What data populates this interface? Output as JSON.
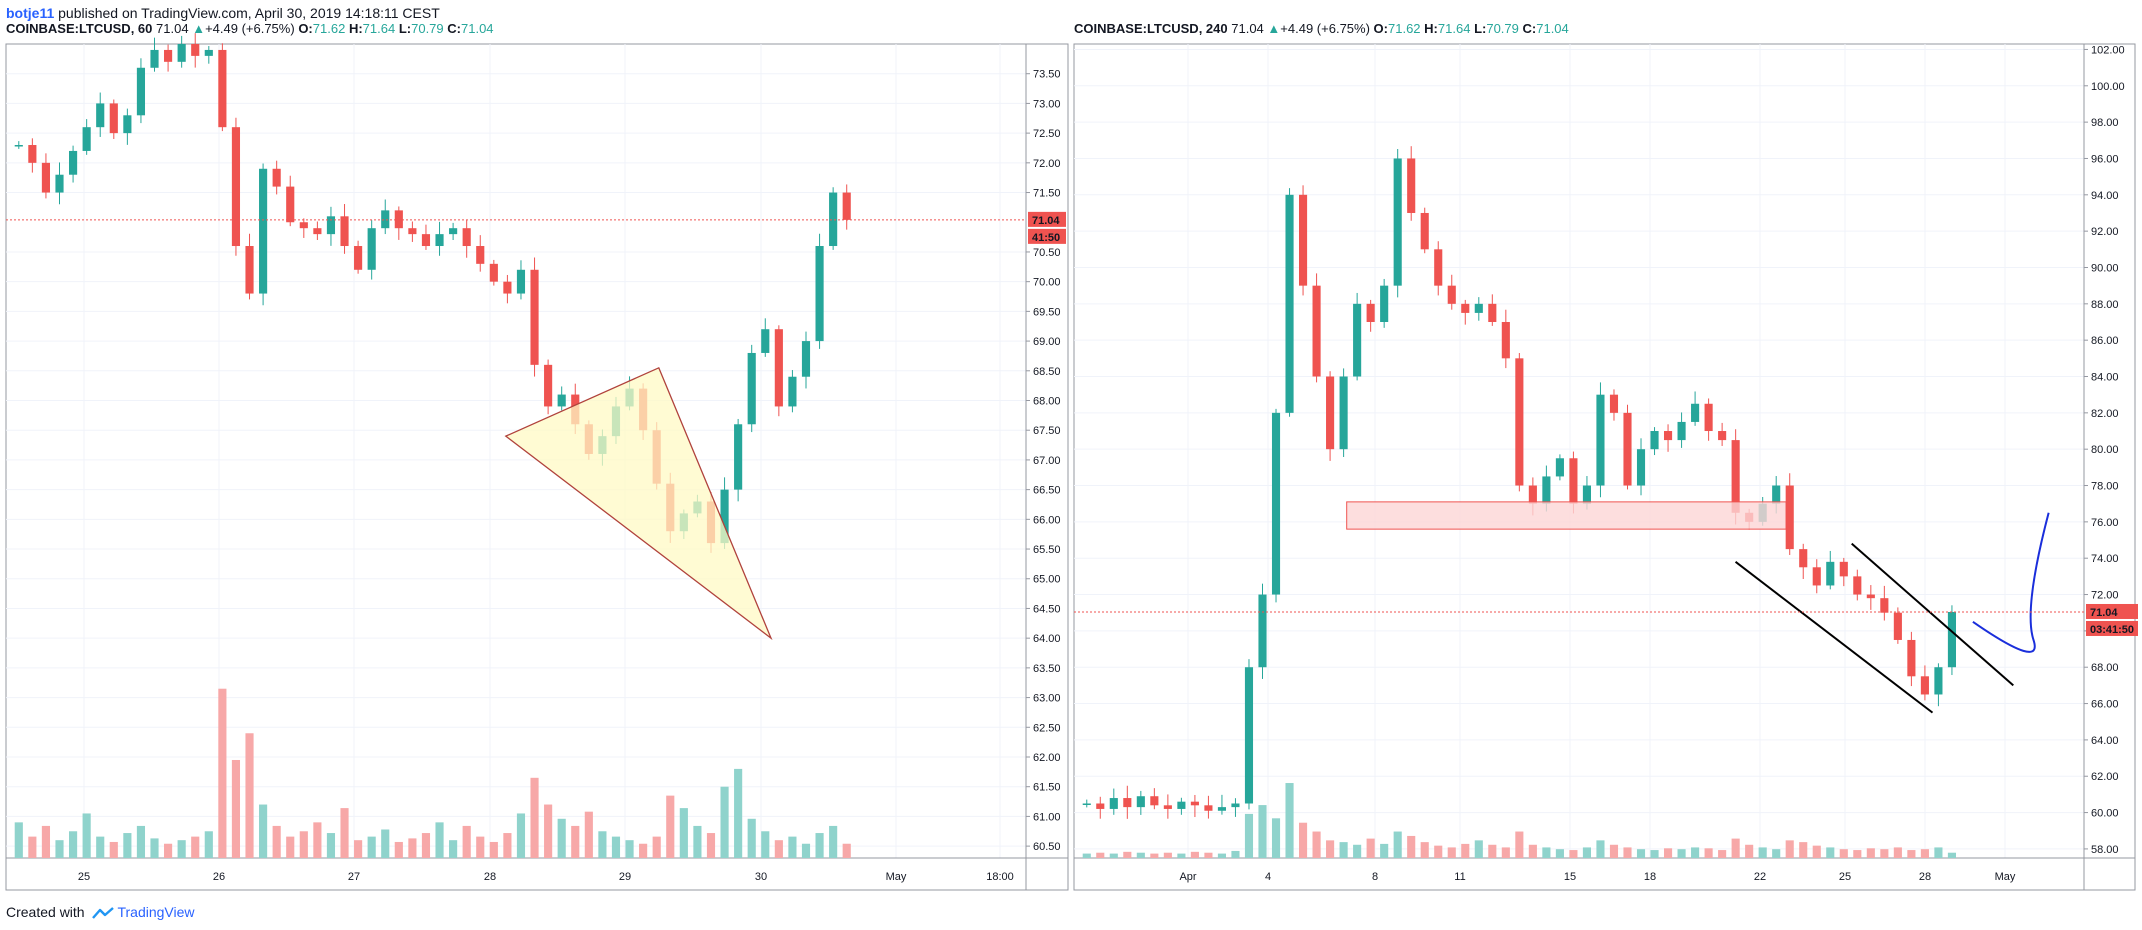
{
  "header": {
    "user": "botje11",
    "text": "published on TradingView.com, April 30, 2019 14:18:11 CEST"
  },
  "left_panel": {
    "symbol": "COINBASE:LTCUSD, 60",
    "last": "71.04",
    "change_arrow": "▲",
    "change": "+4.49 (+6.75%)",
    "o_label": "O:",
    "o": "71.62",
    "h_label": "H:",
    "h": "71.64",
    "l_label": "L:",
    "l": "70.79",
    "c_label": "C:",
    "c": "71.04"
  },
  "right_panel": {
    "symbol": "COINBASE:LTCUSD, 240",
    "last": "71.04",
    "change_arrow": "▲",
    "change": "+4.49 (+6.75%)",
    "o_label": "O:",
    "o": "71.62",
    "h_label": "H:",
    "h": "71.64",
    "l_label": "L:",
    "l": "70.79",
    "c_label": "C:",
    "c": "71.04"
  },
  "footer": {
    "created_with": "Created with",
    "brand": "TradingView"
  },
  "colors": {
    "up": "#26a69a",
    "down": "#ef5350",
    "up_volume": "#8fd3cc",
    "down_volume": "#f7a8a8",
    "price_line": "#ef5350",
    "triangle_fill": "#fff9c4",
    "triangle_stroke": "#b0423c",
    "zone_fill": "#fcd6d6",
    "zone_stroke": "#ef5350",
    "projection": "#1a2edb",
    "channel": "#000000",
    "grid": "#f0f3fa",
    "border": "#9598a1"
  },
  "chart_data": [
    {
      "type": "candlestick",
      "symbol": "COINBASE:LTCUSD",
      "interval": "60",
      "x_ticks": [
        "25",
        "26",
        "27",
        "28",
        "29",
        "30",
        "May",
        "18:00"
      ],
      "y_ticks": [
        "73.50",
        "73.00",
        "72.50",
        "72.00",
        "71.50",
        "70.50",
        "70.00",
        "69.50",
        "69.00",
        "68.50",
        "68.00",
        "67.50",
        "67.00",
        "66.50",
        "66.00",
        "65.50",
        "65.00",
        "64.50",
        "64.00",
        "63.50",
        "63.00",
        "62.50",
        "62.00",
        "61.50",
        "61.00",
        "60.50"
      ],
      "ylim": [
        60.3,
        74.0
      ],
      "last_price": "71.04",
      "countdown": "41:50",
      "price_path": [
        72.3,
        72.0,
        71.5,
        71.8,
        72.2,
        72.6,
        73.0,
        72.5,
        72.8,
        73.6,
        73.9,
        73.7,
        74.0,
        73.8,
        73.9,
        72.6,
        70.6,
        69.8,
        71.9,
        71.6,
        71.0,
        70.9,
        70.8,
        71.1,
        70.6,
        70.2,
        70.9,
        71.2,
        70.9,
        70.8,
        70.6,
        70.8,
        70.9,
        70.6,
        70.3,
        70.0,
        69.8,
        70.2,
        68.6,
        67.9,
        68.1,
        67.6,
        67.1,
        67.4,
        67.9,
        68.2,
        67.5,
        66.6,
        65.8,
        66.1,
        66.3,
        65.6,
        66.5,
        67.6,
        68.8,
        69.2,
        67.9,
        68.4,
        69.0,
        70.6,
        71.5,
        71.04
      ],
      "volume_path": [
        0.2,
        0.12,
        0.18,
        0.1,
        0.15,
        0.25,
        0.12,
        0.09,
        0.14,
        0.18,
        0.11,
        0.08,
        0.1,
        0.12,
        0.15,
        0.95,
        0.55,
        0.7,
        0.3,
        0.18,
        0.12,
        0.15,
        0.2,
        0.14,
        0.28,
        0.1,
        0.12,
        0.16,
        0.09,
        0.11,
        0.14,
        0.2,
        0.1,
        0.18,
        0.12,
        0.09,
        0.14,
        0.25,
        0.45,
        0.3,
        0.22,
        0.18,
        0.26,
        0.15,
        0.12,
        0.1,
        0.08,
        0.12,
        0.35,
        0.28,
        0.18,
        0.14,
        0.4,
        0.5,
        0.22,
        0.15,
        0.1,
        0.12,
        0.08,
        0.14,
        0.18,
        0.08
      ],
      "triangle": [
        [
          0.49,
          67.4
        ],
        [
          0.64,
          68.55
        ],
        [
          0.75,
          64.0
        ]
      ]
    },
    {
      "type": "candlestick",
      "symbol": "COINBASE:LTCUSD",
      "interval": "240",
      "x_ticks": [
        "Apr",
        "4",
        "8",
        "11",
        "15",
        "18",
        "22",
        "25",
        "28",
        "May"
      ],
      "y_ticks": [
        "102.00",
        "100.00",
        "98.00",
        "96.00",
        "94.00",
        "92.00",
        "90.00",
        "88.00",
        "86.00",
        "84.00",
        "82.00",
        "80.00",
        "78.00",
        "76.00",
        "74.00",
        "72.00",
        "70.00",
        "68.00",
        "66.00",
        "64.00",
        "62.00",
        "60.00",
        "58.00"
      ],
      "ylim": [
        57.5,
        102.3
      ],
      "last_price": "71.04",
      "countdown": "03:41:50",
      "price_path": [
        60.5,
        60.2,
        60.8,
        60.3,
        60.9,
        60.4,
        60.2,
        60.6,
        60.4,
        60.1,
        60.3,
        60.5,
        68.0,
        72.0,
        82.0,
        94.0,
        89.0,
        84.0,
        80.0,
        84.0,
        88.0,
        87.0,
        89.0,
        96.0,
        93.0,
        91.0,
        89.0,
        88.0,
        87.5,
        88.0,
        87.0,
        85.0,
        78.0,
        77.0,
        78.5,
        79.5,
        77.0,
        78.0,
        83.0,
        82.0,
        78.0,
        80.0,
        81.0,
        80.5,
        81.5,
        82.5,
        81.0,
        80.5,
        76.5,
        76.0,
        77.0,
        78.0,
        74.5,
        73.5,
        72.5,
        73.8,
        73.0,
        72.0,
        71.8,
        71.0,
        69.5,
        67.5,
        66.5,
        68.0,
        71.04
      ],
      "volume_path": [
        0.05,
        0.06,
        0.05,
        0.07,
        0.06,
        0.05,
        0.06,
        0.05,
        0.07,
        0.06,
        0.05,
        0.08,
        0.5,
        0.6,
        0.45,
        0.85,
        0.4,
        0.3,
        0.2,
        0.18,
        0.15,
        0.22,
        0.16,
        0.3,
        0.25,
        0.18,
        0.14,
        0.12,
        0.16,
        0.2,
        0.15,
        0.12,
        0.3,
        0.15,
        0.12,
        0.1,
        0.09,
        0.12,
        0.2,
        0.15,
        0.12,
        0.1,
        0.09,
        0.11,
        0.1,
        0.12,
        0.11,
        0.09,
        0.22,
        0.15,
        0.12,
        0.1,
        0.2,
        0.18,
        0.14,
        0.12,
        0.1,
        0.09,
        0.11,
        0.1,
        0.12,
        0.09,
        0.1,
        0.12,
        0.06
      ],
      "zone": [
        75.6,
        77.1
      ],
      "channel_upper": [
        [
          0.77,
          74.8
        ],
        [
          0.93,
          67.0
        ]
      ],
      "channel_lower": [
        [
          0.655,
          73.8
        ],
        [
          0.85,
          65.5
        ]
      ],
      "projection": [
        [
          0.89,
          70.5
        ],
        [
          0.92,
          69.0
        ],
        [
          0.965,
          76.5
        ]
      ]
    }
  ]
}
